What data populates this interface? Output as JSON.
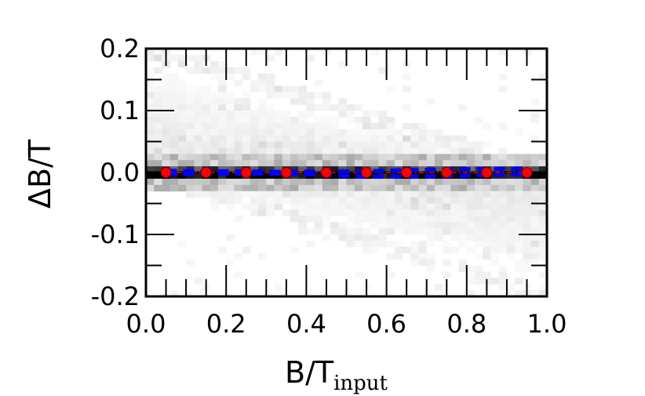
{
  "chart_data": {
    "type": "scatter",
    "title": "",
    "xlabel": "B/T",
    "xlabel_subscript": "input",
    "ylabel": "ΔB/T",
    "xlim": [
      0.0,
      1.0
    ],
    "ylim": [
      -0.2,
      0.2
    ],
    "x_ticks": [
      0.0,
      0.2,
      0.4,
      0.6,
      0.8,
      1.0
    ],
    "x_tick_labels": [
      "0.0",
      "0.2",
      "0.4",
      "0.6",
      "0.8",
      "1.0"
    ],
    "y_ticks": [
      -0.2,
      -0.1,
      0.0,
      0.1,
      0.2
    ],
    "y_tick_labels": [
      "-0.2",
      "-0.1",
      "0.0",
      "0.1",
      "0.2"
    ],
    "grid": false,
    "background": "2D density histogram of ΔB/T vs B/T_input (grayscale); most counts concentrated near ΔB/T = 0, faint triangular spread toward ±0.2",
    "series": [
      {
        "style": "red circles with dash-dot red line",
        "color": "#ff0000",
        "x": [
          0.05,
          0.15,
          0.25,
          0.35,
          0.45,
          0.55,
          0.65,
          0.75,
          0.85,
          0.95
        ],
        "y": [
          0.0,
          0.0,
          0.0,
          0.0,
          0.0,
          0.0,
          0.0,
          0.0,
          0.0,
          0.0
        ]
      },
      {
        "style": "blue dashed envelope (upper)",
        "color": "#0000ff",
        "x": [
          0.05,
          0.15,
          0.25,
          0.35,
          0.45,
          0.55,
          0.65,
          0.75,
          0.85,
          0.95
        ],
        "y": [
          0.003,
          0.002,
          0.002,
          0.001,
          0.002,
          0.002,
          0.004,
          0.005,
          0.006,
          0.006
        ]
      },
      {
        "style": "blue dashed envelope (lower)",
        "color": "#0000ff",
        "x": [
          0.05,
          0.15,
          0.25,
          0.35,
          0.45,
          0.55,
          0.65,
          0.75,
          0.85,
          0.95
        ],
        "y": [
          -0.003,
          -0.002,
          -0.002,
          -0.002,
          -0.004,
          -0.007,
          -0.006,
          -0.006,
          -0.004,
          -0.003
        ]
      }
    ],
    "colors": {
      "marker": "#ff0000",
      "envelope": "#0000ff",
      "axes": "#000000"
    }
  }
}
